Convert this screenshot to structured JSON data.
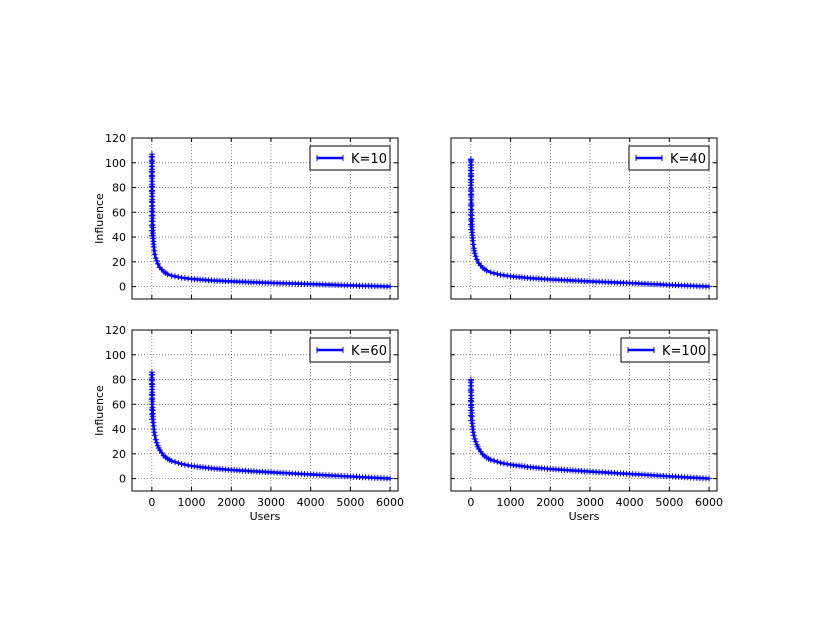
{
  "chart_data": [
    {
      "type": "line",
      "legend": "K=10",
      "legend_placement": "top-right",
      "grid": true,
      "color": "#0000ff",
      "marker": "plus",
      "xlabel": "",
      "ylabel": "Influence",
      "xlim": [
        -500,
        6200
      ],
      "ylim": [
        -10,
        120
      ],
      "xticks": [
        "0",
        "1000",
        "2000",
        "3000",
        "4000",
        "5000",
        "6000"
      ],
      "yticks": [
        "0",
        "20",
        "40",
        "60",
        "80",
        "100",
        "120"
      ],
      "peak": 107,
      "x": [
        0,
        10,
        20,
        30,
        50,
        75,
        100,
        150,
        200,
        300,
        400,
        500,
        750,
        1000,
        1500,
        2000,
        2500,
        3000,
        4000,
        5000,
        6000
      ],
      "y": [
        107,
        68,
        50,
        41,
        32,
        26,
        23,
        18.5,
        15.5,
        12,
        10,
        8.8,
        7.2,
        6.2,
        5,
        4.2,
        3.6,
        3,
        2,
        1,
        0
      ]
    },
    {
      "type": "line",
      "legend": "K=40",
      "legend_placement": "top-right",
      "grid": true,
      "color": "#0000ff",
      "marker": "plus",
      "xlabel": "",
      "ylabel": "",
      "xlim": [
        -500,
        6200
      ],
      "ylim": [
        -10,
        120
      ],
      "xticks": [
        "0",
        "1000",
        "2000",
        "3000",
        "4000",
        "5000",
        "6000"
      ],
      "yticks": [],
      "peak": 103,
      "x": [
        0,
        10,
        20,
        30,
        50,
        75,
        100,
        150,
        200,
        300,
        400,
        500,
        750,
        1000,
        1500,
        2000,
        2500,
        3000,
        4000,
        5000,
        6000
      ],
      "y": [
        103,
        70,
        55,
        46,
        37,
        31,
        27,
        22,
        19,
        15,
        13,
        11.5,
        9.5,
        8.3,
        6.8,
        5.8,
        5,
        4.2,
        2.8,
        1.4,
        0
      ]
    },
    {
      "type": "line",
      "legend": "K=60",
      "legend_placement": "top-right",
      "grid": true,
      "color": "#0000ff",
      "marker": "plus",
      "xlabel": "Users",
      "ylabel": "Influence",
      "xlim": [
        -500,
        6200
      ],
      "ylim": [
        -10,
        120
      ],
      "xticks": [
        "0",
        "1000",
        "2000",
        "3000",
        "4000",
        "5000",
        "6000"
      ],
      "yticks": [
        "0",
        "20",
        "40",
        "60",
        "80",
        "100",
        "120"
      ],
      "peak": 86,
      "x": [
        0,
        10,
        20,
        30,
        50,
        75,
        100,
        150,
        200,
        300,
        400,
        500,
        750,
        1000,
        1500,
        2000,
        2500,
        3000,
        4000,
        5000,
        6000
      ],
      "y": [
        86,
        65,
        55,
        48,
        40,
        35,
        31.5,
        26.5,
        23,
        18.5,
        16,
        14.2,
        11.8,
        10.2,
        8.3,
        7,
        6,
        5.1,
        3.4,
        1.7,
        0
      ]
    },
    {
      "type": "line",
      "legend": "K=100",
      "legend_placement": "top-right",
      "grid": true,
      "color": "#0000ff",
      "marker": "plus",
      "xlabel": "Users",
      "ylabel": "",
      "xlim": [
        -500,
        6200
      ],
      "ylim": [
        -10,
        120
      ],
      "xticks": [
        "0",
        "1000",
        "2000",
        "3000",
        "4000",
        "5000",
        "6000"
      ],
      "yticks": [],
      "peak": 80,
      "x": [
        0,
        10,
        20,
        30,
        50,
        75,
        100,
        150,
        200,
        300,
        400,
        500,
        750,
        1000,
        1500,
        2000,
        2500,
        3000,
        4000,
        5000,
        6000
      ],
      "y": [
        80,
        62,
        53,
        47,
        40,
        35,
        32,
        27.5,
        24,
        19.5,
        17,
        15.2,
        12.8,
        11.2,
        9.2,
        7.8,
        6.7,
        5.7,
        3.8,
        1.9,
        0
      ]
    }
  ]
}
